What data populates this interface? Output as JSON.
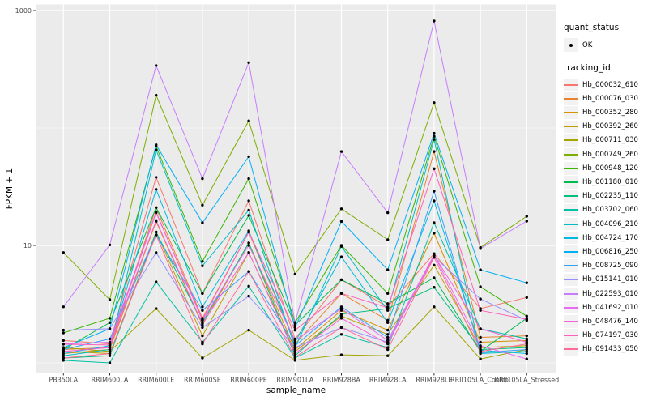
{
  "figure": {
    "x_axis_title": "sample_name",
    "y_axis_title": "FPKM + 1",
    "y_tick_labels": [
      {
        "label": "1000",
        "value": 1000
      },
      {
        "label": "10",
        "value": 10
      }
    ]
  },
  "legend": {
    "quant_status": {
      "title": "quant_status",
      "items": [
        {
          "label": "OK",
          "symbol": "point"
        }
      ]
    },
    "tracking_id": {
      "title": "tracking_id"
    }
  },
  "colors": {
    "panel_bg": "#EBEBEB",
    "grid": "#FFFFFF",
    "point": "#000000",
    "axis_text": "#4D4D4D",
    "legend_key_bg": "#F2F2F2"
  },
  "chart_data": {
    "type": "line",
    "title": "",
    "xlabel": "sample_name",
    "ylabel": "FPKM + 1",
    "y_scale": "log10",
    "ylim": [
      0.85,
      1200
    ],
    "y_major_breaks": [
      10,
      1000
    ],
    "y_minor_breaks": [
      1,
      100
    ],
    "legend_position": "right",
    "x_categories": [
      "PB350LA",
      "RRIM600LA",
      "RRIM600LE",
      "RRIM600SE",
      "RRIM600PE",
      "RRIM901LA",
      "RRIM928BA",
      "RRIM928LA",
      "RRIM928LE",
      "RRII105LA_Control",
      "RRII105LA_Stressed"
    ],
    "series": [
      {
        "name": "Hb_000032_610",
        "color": "#F8766D",
        "values": [
          1.55,
          1.45,
          38,
          3.9,
          24,
          1.6,
          5.1,
          3.0,
          8.5,
          2.9,
          3.6
        ]
      },
      {
        "name": "Hb_000076_030",
        "color": "#EA8331",
        "values": [
          1.3,
          1.35,
          21,
          2.4,
          13,
          1.45,
          3.9,
          2.3,
          63,
          1.65,
          1.7
        ]
      },
      {
        "name": "Hb_000352_280",
        "color": "#D89000",
        "values": [
          1.2,
          1.3,
          16,
          2.1,
          10.5,
          1.3,
          2.8,
          1.9,
          12.7,
          1.5,
          1.55
        ]
      },
      {
        "name": "Hb_000392_260",
        "color": "#C09B00",
        "values": [
          1.25,
          1.2,
          13,
          1.7,
          8.7,
          1.25,
          2.5,
          1.75,
          6.8,
          1.35,
          1.4
        ]
      },
      {
        "name": "Hb_000711_030",
        "color": "#A3A500",
        "values": [
          1.35,
          1.25,
          2.9,
          1.1,
          1.9,
          1.05,
          1.17,
          1.15,
          3.0,
          1.08,
          1.3
        ]
      },
      {
        "name": "Hb_000749_260",
        "color": "#7CAE00",
        "values": [
          8.7,
          3.45,
          190,
          22,
          115,
          5.7,
          20.5,
          11.2,
          164,
          9.6,
          17.7
        ]
      },
      {
        "name": "Hb_000948_120",
        "color": "#39B600",
        "values": [
          1.8,
          2.4,
          70,
          7.3,
          37,
          2.2,
          10,
          3.9,
          85,
          4.45,
          2.5
        ]
      },
      {
        "name": "Hb_001180_010",
        "color": "#00BB4E",
        "values": [
          1.3,
          2.2,
          21,
          3.9,
          18,
          2.1,
          5.1,
          3.2,
          5.3,
          1.25,
          2.4
        ]
      },
      {
        "name": "Hb_002235_110",
        "color": "#00BF7D",
        "values": [
          1.1,
          1.15,
          13,
          2.2,
          10.5,
          1.15,
          2.6,
          2.9,
          4.4,
          1.3,
          1.35
        ]
      },
      {
        "name": "Hb_003702_060",
        "color": "#00C1A3",
        "values": [
          1.05,
          1.0,
          4.9,
          1.5,
          4.5,
          1.1,
          1.75,
          1.35,
          15.6,
          1.95,
          1.6
        ]
      },
      {
        "name": "Hb_004096_210",
        "color": "#00BFC4",
        "values": [
          1.15,
          1.3,
          65,
          6.7,
          20,
          1.35,
          9.8,
          2.8,
          80,
          1.2,
          1.25
        ]
      },
      {
        "name": "Hb_004724_170",
        "color": "#00BAE0",
        "values": [
          1.2,
          1.4,
          30,
          3.0,
          13.3,
          1.5,
          8.0,
          2.2,
          24,
          1.28,
          1.2
        ]
      },
      {
        "name": "Hb_006816_250",
        "color": "#00B0F6",
        "values": [
          1.35,
          1.95,
          72,
          15.6,
          57,
          2.0,
          16,
          6.2,
          90,
          6.2,
          4.8
        ]
      },
      {
        "name": "Hb_008725_090",
        "color": "#35A2FF",
        "values": [
          1.3,
          1.6,
          12.3,
          2.8,
          6.0,
          1.4,
          3.0,
          1.65,
          29,
          1.22,
          1.3
        ]
      },
      {
        "name": "Hb_015141_010",
        "color": "#9590FF",
        "values": [
          1.9,
          1.95,
          8.7,
          2.0,
          3.7,
          1.35,
          2.0,
          1.5,
          8.0,
          3.5,
          2.3
        ]
      },
      {
        "name": "Hb_022593_010",
        "color": "#C77CFF",
        "values": [
          3.0,
          10.1,
          340,
          37,
          360,
          2.2,
          63,
          19,
          815,
          9.4,
          16.1
        ]
      },
      {
        "name": "Hb_041692_010",
        "color": "#E76BF3",
        "values": [
          1.45,
          1.5,
          19.3,
          2.3,
          10,
          1.55,
          2.9,
          1.55,
          8.3,
          1.4,
          1.08
        ]
      },
      {
        "name": "Hb_048476_140",
        "color": "#FA62DB",
        "values": [
          1.25,
          1.35,
          16.3,
          2.15,
          8.7,
          1.2,
          2.4,
          1.45,
          8.2,
          1.95,
          1.5
        ]
      },
      {
        "name": "Hb_074197_030",
        "color": "#FF62BC",
        "values": [
          1.44,
          1.42,
          19,
          2.35,
          13,
          1.9,
          3.9,
          2.95,
          45,
          2.8,
          2.35
        ]
      },
      {
        "name": "Hb_091433_050",
        "color": "#FF6A98",
        "values": [
          1.1,
          1.2,
          12.3,
          1.45,
          6.0,
          1.12,
          2.0,
          1.3,
          7.9,
          1.25,
          1.45
        ]
      }
    ]
  }
}
